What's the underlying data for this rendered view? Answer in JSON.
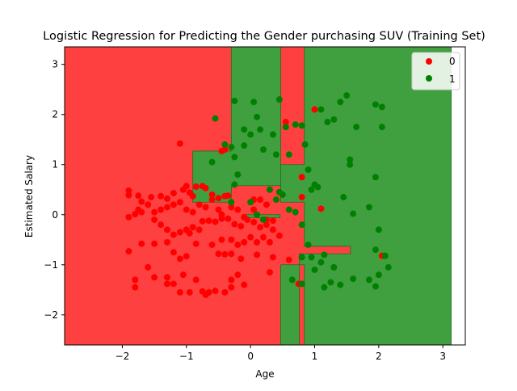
{
  "chart_data": {
    "type": "scatter",
    "title": "Logistic Regression for Predicting the Gender purchasing SUV (Training Set)",
    "xlabel": "Age",
    "ylabel": "Estimated Salary",
    "xlim": [
      -2.9,
      3.35
    ],
    "ylim": [
      -2.6,
      3.35
    ],
    "x_ticks": [
      -2,
      -1,
      0,
      1,
      2,
      3
    ],
    "y_ticks": [
      -2,
      -1,
      0,
      1,
      2,
      3
    ],
    "x_tick_labels": [
      "−2",
      "−1",
      "0",
      "1",
      "2",
      "3"
    ],
    "y_tick_labels": [
      "−2",
      "−1",
      "0",
      "1",
      "2",
      "3"
    ],
    "legend": {
      "position": "top-right",
      "entries": [
        {
          "label": "0",
          "color": "#ff0000"
        },
        {
          "label": "1",
          "color": "#008000"
        }
      ]
    },
    "regions": {
      "background_color": "#ffffff",
      "class0_color": "#ff4040",
      "class1_color": "#40a040",
      "extent": {
        "x": [
          -2.9,
          3.13
        ],
        "y": [
          -2.6,
          3.35
        ]
      },
      "class1_polygons": [
        [
          [
            -0.3,
            3.35
          ],
          [
            0.47,
            3.35
          ],
          [
            0.47,
            0.58
          ],
          [
            -0.3,
            0.58
          ],
          [
            -0.3,
            0.25
          ],
          [
            -0.9,
            0.25
          ],
          [
            -0.9,
            1.27
          ],
          [
            -0.3,
            1.27
          ]
        ],
        [
          [
            0.84,
            3.35
          ],
          [
            3.13,
            3.35
          ],
          [
            3.13,
            -2.6
          ],
          [
            0.84,
            -2.6
          ],
          [
            0.84,
            -1.0
          ],
          [
            0.47,
            -1.0
          ],
          [
            0.47,
            -2.6
          ],
          [
            0.76,
            -2.6
          ],
          [
            0.76,
            -0.78
          ],
          [
            1.56,
            -0.78
          ],
          [
            1.56,
            -0.63
          ],
          [
            0.84,
            -0.63
          ],
          [
            0.84,
            0.25
          ],
          [
            0.47,
            0.25
          ],
          [
            0.47,
            1.0
          ],
          [
            0.84,
            1.0
          ]
        ],
        [
          [
            -0.1,
            0.0
          ],
          [
            0.46,
            0.0
          ],
          [
            0.46,
            -0.06
          ],
          [
            -0.1,
            -0.06
          ]
        ]
      ]
    },
    "series": [
      {
        "name": "0",
        "color": "#ff0000",
        "points": [
          [
            -1.9,
            0.48
          ],
          [
            -1.9,
            0.39
          ],
          [
            -1.75,
            0.1
          ],
          [
            -1.7,
            0.05
          ],
          [
            -1.9,
            -0.05
          ],
          [
            -1.8,
            0.01
          ],
          [
            -1.55,
            0.35
          ],
          [
            -1.4,
            0.37
          ],
          [
            -1.3,
            0.32
          ],
          [
            -1.2,
            0.43
          ],
          [
            -1.05,
            0.5
          ],
          [
            -1.0,
            0.57
          ],
          [
            -0.95,
            0.44
          ],
          [
            -0.9,
            0.37
          ],
          [
            -0.85,
            0.56
          ],
          [
            -0.75,
            0.57
          ],
          [
            -0.7,
            0.53
          ],
          [
            -0.6,
            0.4
          ],
          [
            -0.5,
            0.33
          ],
          [
            -0.4,
            0.37
          ],
          [
            -0.35,
            0.38
          ],
          [
            -1.75,
            0.38
          ],
          [
            -1.7,
            0.26
          ],
          [
            -1.6,
            0.2
          ],
          [
            -1.5,
            0.05
          ],
          [
            -1.4,
            0.1
          ],
          [
            -1.3,
            0.15
          ],
          [
            -1.2,
            0.2
          ],
          [
            -1.1,
            0.25
          ],
          [
            -1.0,
            0.1
          ],
          [
            -0.9,
            0.05
          ],
          [
            -0.8,
            0.2
          ],
          [
            -0.7,
            0.15
          ],
          [
            -0.6,
            0.3
          ],
          [
            -0.5,
            0.1
          ],
          [
            -0.45,
            0.0
          ],
          [
            -0.3,
            0.15
          ],
          [
            -0.2,
            0.1
          ],
          [
            -0.1,
            -0.05
          ],
          [
            0.05,
            0.1
          ],
          [
            0.15,
            0.3
          ],
          [
            0.25,
            0.2
          ],
          [
            -1.5,
            -0.1
          ],
          [
            -1.4,
            -0.2
          ],
          [
            -1.3,
            -0.3
          ],
          [
            -1.2,
            -0.4
          ],
          [
            -1.1,
            -0.35
          ],
          [
            -1.0,
            -0.3
          ],
          [
            -0.95,
            -0.37
          ],
          [
            -0.9,
            -0.25
          ],
          [
            -0.8,
            -0.3
          ],
          [
            -0.75,
            -0.13
          ],
          [
            -0.65,
            -0.12
          ],
          [
            -0.55,
            -0.14
          ],
          [
            -0.45,
            -0.08
          ],
          [
            -0.35,
            -0.08
          ],
          [
            -0.25,
            -0.19
          ],
          [
            -0.15,
            -0.23
          ],
          [
            -0.05,
            -0.1
          ],
          [
            0.05,
            -0.15
          ],
          [
            0.15,
            -0.25
          ],
          [
            0.25,
            -0.2
          ],
          [
            0.35,
            -0.3
          ],
          [
            -1.9,
            -0.73
          ],
          [
            -1.7,
            -0.58
          ],
          [
            -1.5,
            -0.58
          ],
          [
            -1.3,
            -0.55
          ],
          [
            -1.2,
            -0.75
          ],
          [
            -1.1,
            -0.88
          ],
          [
            -1.0,
            -0.83
          ],
          [
            -0.85,
            -0.58
          ],
          [
            -0.6,
            -0.6
          ],
          [
            -0.45,
            -0.5
          ],
          [
            -0.3,
            -0.5
          ],
          [
            -0.2,
            -0.6
          ],
          [
            -0.1,
            -0.55
          ],
          [
            0.0,
            -0.45
          ],
          [
            0.1,
            -0.55
          ],
          [
            0.2,
            -0.45
          ],
          [
            0.3,
            -0.55
          ],
          [
            0.45,
            -0.42
          ],
          [
            -0.5,
            -0.78
          ],
          [
            -0.4,
            -0.79
          ],
          [
            -0.3,
            -0.78
          ],
          [
            -0.15,
            -0.88
          ],
          [
            0.1,
            -0.8
          ],
          [
            0.35,
            -0.85
          ],
          [
            -1.8,
            -1.3
          ],
          [
            -1.8,
            -1.45
          ],
          [
            -1.6,
            -1.05
          ],
          [
            -1.5,
            -1.25
          ],
          [
            -1.3,
            -1.25
          ],
          [
            -1.3,
            -1.38
          ],
          [
            -1.2,
            -1.38
          ],
          [
            -1.1,
            -1.55
          ],
          [
            -1.05,
            -1.2
          ],
          [
            -0.95,
            -1.55
          ],
          [
            -0.85,
            -1.3
          ],
          [
            -0.75,
            -1.53
          ],
          [
            -0.7,
            -1.6
          ],
          [
            -0.65,
            -1.55
          ],
          [
            -0.55,
            -1.52
          ],
          [
            -0.4,
            -1.55
          ],
          [
            -0.3,
            -1.45
          ],
          [
            -0.3,
            -1.3
          ],
          [
            -0.2,
            -1.2
          ],
          [
            -0.1,
            -1.4
          ],
          [
            0.3,
            -1.15
          ],
          [
            0.6,
            -0.9
          ],
          [
            0.75,
            -1.38
          ],
          [
            -1.1,
            1.42
          ],
          [
            -0.45,
            1.27
          ],
          [
            -0.4,
            1.3
          ],
          [
            0.05,
            0.3
          ],
          [
            0.25,
            -0.1
          ],
          [
            0.35,
            -0.12
          ],
          [
            0.55,
            1.85
          ],
          [
            0.8,
            0.75
          ],
          [
            0.8,
            0.35
          ],
          [
            1.0,
            2.1
          ],
          [
            1.1,
            0.12
          ],
          [
            2.05,
            -0.82
          ]
        ]
      },
      {
        "name": "1",
        "color": "#008000",
        "points": [
          [
            -0.55,
            1.92
          ],
          [
            -0.6,
            1.05
          ],
          [
            -0.4,
            1.4
          ],
          [
            -0.3,
            1.35
          ],
          [
            -0.25,
            1.15
          ],
          [
            -0.25,
            2.27
          ],
          [
            -0.2,
            0.8
          ],
          [
            -0.1,
            1.38
          ],
          [
            -0.1,
            1.7
          ],
          [
            0.0,
            1.6
          ],
          [
            0.05,
            2.25
          ],
          [
            0.1,
            1.95
          ],
          [
            0.15,
            1.7
          ],
          [
            0.2,
            1.3
          ],
          [
            0.35,
            1.6
          ],
          [
            0.4,
            1.2
          ],
          [
            0.45,
            2.3
          ],
          [
            -0.25,
            0.6
          ],
          [
            0.3,
            0.5
          ],
          [
            0.4,
            0.3
          ],
          [
            -0.3,
            0.25
          ],
          [
            0.0,
            0.25
          ],
          [
            0.1,
            0.0
          ],
          [
            0.2,
            -0.1
          ],
          [
            0.55,
            1.75
          ],
          [
            0.6,
            1.2
          ],
          [
            0.7,
            1.8
          ],
          [
            0.8,
            1.78
          ],
          [
            0.85,
            1.4
          ],
          [
            0.9,
            0.9
          ],
          [
            0.95,
            0.5
          ],
          [
            1.0,
            0.6
          ],
          [
            1.05,
            0.55
          ],
          [
            1.1,
            2.1
          ],
          [
            1.2,
            1.85
          ],
          [
            1.3,
            1.9
          ],
          [
            1.4,
            2.25
          ],
          [
            1.5,
            2.38
          ],
          [
            1.65,
            1.75
          ],
          [
            1.95,
            2.2
          ],
          [
            2.05,
            2.15
          ],
          [
            1.55,
            1.1
          ],
          [
            1.55,
            1.0
          ],
          [
            1.95,
            0.75
          ],
          [
            2.05,
            1.75
          ],
          [
            1.45,
            0.35
          ],
          [
            1.6,
            0.02
          ],
          [
            1.85,
            0.15
          ],
          [
            2.0,
            -0.3
          ],
          [
            0.5,
            0.4
          ],
          [
            0.6,
            0.1
          ],
          [
            0.7,
            0.05
          ],
          [
            0.8,
            -0.2
          ],
          [
            0.9,
            -0.6
          ],
          [
            0.95,
            -0.85
          ],
          [
            1.0,
            -1.1
          ],
          [
            1.1,
            -0.95
          ],
          [
            1.15,
            -0.8
          ],
          [
            1.3,
            -1.05
          ],
          [
            1.15,
            -1.45
          ],
          [
            1.25,
            -1.35
          ],
          [
            1.4,
            -1.4
          ],
          [
            1.6,
            -1.28
          ],
          [
            1.85,
            -1.3
          ],
          [
            1.95,
            -1.43
          ],
          [
            2.0,
            -1.2
          ],
          [
            2.1,
            -0.82
          ],
          [
            2.15,
            -1.05
          ],
          [
            1.95,
            -0.7
          ],
          [
            0.65,
            -1.3
          ],
          [
            0.8,
            -1.38
          ],
          [
            0.8,
            -0.85
          ],
          [
            0.45,
            0.45
          ]
        ]
      }
    ]
  }
}
